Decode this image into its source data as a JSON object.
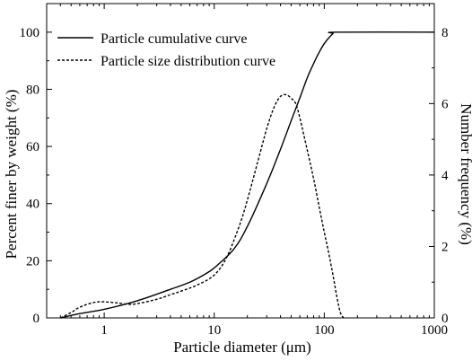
{
  "chart_data": {
    "type": "line",
    "x_scale": "log",
    "xlim": [
      0.3,
      1000
    ],
    "ylim_left": [
      0,
      110
    ],
    "ylim_right": [
      0,
      8.8
    ],
    "xlabel": "Particle diameter (μm)",
    "ylabel_left": "Percent finer by weight (%)",
    "ylabel_right": "Number frequency (%)",
    "x_ticks": [
      {
        "value": 1,
        "label": "1"
      },
      {
        "value": 10,
        "label": "10"
      },
      {
        "value": 100,
        "label": "100"
      },
      {
        "value": 1000,
        "label": "1000"
      }
    ],
    "y_left_ticks": [
      {
        "value": 0,
        "label": "0"
      },
      {
        "value": 20,
        "label": "20"
      },
      {
        "value": 40,
        "label": "40"
      },
      {
        "value": 60,
        "label": "60"
      },
      {
        "value": 80,
        "label": "80"
      },
      {
        "value": 100,
        "label": "100"
      }
    ],
    "y_right_ticks": [
      {
        "value": 0,
        "label": "0"
      },
      {
        "value": 2,
        "label": "2"
      },
      {
        "value": 4,
        "label": "4"
      },
      {
        "value": 6,
        "label": "6"
      },
      {
        "value": 8,
        "label": "8"
      }
    ],
    "grid": false,
    "legend_position": "top-left",
    "series": [
      {
        "name": "Particle cumulative curve",
        "axis": "left",
        "style": "solid",
        "color": "#000000",
        "x": [
          0.4,
          0.6,
          1,
          2,
          4,
          6,
          8,
          10,
          15,
          20,
          30,
          40,
          50,
          60,
          70,
          80,
          90,
          100,
          110,
          120,
          130,
          1000
        ],
        "y": [
          0,
          1.5,
          3,
          6,
          10,
          12.5,
          15,
          17.5,
          24,
          32,
          47,
          59,
          69,
          77,
          84,
          89,
          93,
          96,
          98,
          99.5,
          100,
          100
        ]
      },
      {
        "name": "Particle size distribution curve",
        "axis": "right",
        "style": "dashed",
        "color": "#000000",
        "x": [
          0.4,
          0.5,
          0.6,
          0.8,
          1,
          1.3,
          1.7,
          2,
          3,
          4,
          5,
          7,
          10,
          13,
          17,
          20,
          25,
          30,
          35,
          40,
          45,
          50,
          55,
          60,
          70,
          80,
          90,
          100,
          110,
          120,
          130,
          140,
          150
        ],
        "y": [
          0,
          0.15,
          0.3,
          0.43,
          0.45,
          0.42,
          0.38,
          0.4,
          0.52,
          0.65,
          0.75,
          0.92,
          1.2,
          1.7,
          2.6,
          3.3,
          4.4,
          5.3,
          5.9,
          6.2,
          6.25,
          6.15,
          6.0,
          5.6,
          4.7,
          3.9,
          3.1,
          2.4,
          1.8,
          1.2,
          0.6,
          0.15,
          0
        ]
      }
    ]
  }
}
